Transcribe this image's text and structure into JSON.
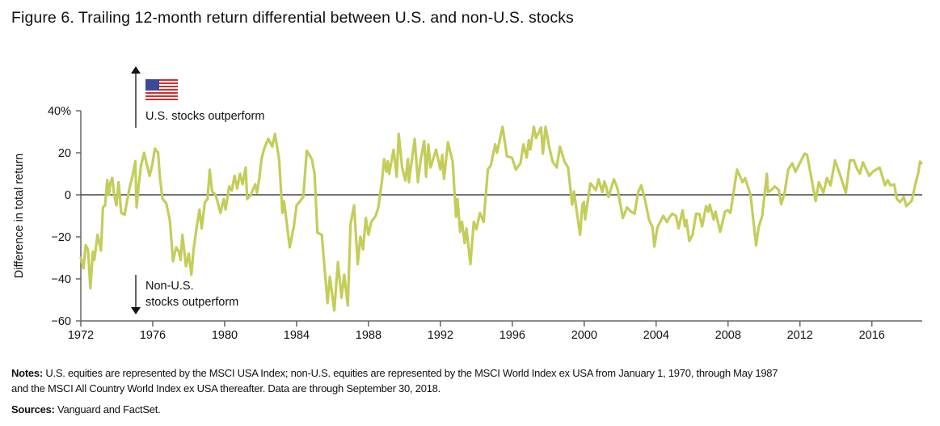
{
  "title": "Figure 6. Trailing 12-month return differential between U.S. and non-U.S. stocks",
  "notes": {
    "notes_label": "Notes:",
    "notes_text_line1": "U.S. equities are represented by the MSCI USA Index; non-U.S. equities are represented by the MSCI World Index ex USA from January 1, 1970, through May 1987",
    "notes_text_line2": "and the MSCI All Country World Index ex USA thereafter. Data are through September 30, 2018.",
    "sources_label": "Sources:",
    "sources_text": "Vanguard and FactSet."
  },
  "chart_data": {
    "type": "line",
    "title": "Figure 6. Trailing 12-month return differential between U.S. and non-U.S. stocks",
    "xlabel": "",
    "ylabel": "Difference in total return",
    "xlim": [
      1972,
      2018.8
    ],
    "ylim": [
      -60,
      40
    ],
    "x_ticks": [
      "1972",
      "1976",
      "1980",
      "1984",
      "1988",
      "1992",
      "1996",
      "2000",
      "2004",
      "2008",
      "2012",
      "2016"
    ],
    "y_ticks": [
      "40%",
      "20",
      "0",
      "−20",
      "−40",
      "−60"
    ],
    "y_tick_values": [
      40,
      20,
      0,
      -20,
      -40,
      -60
    ],
    "x_tick_values": [
      1972,
      1976,
      1980,
      1984,
      1988,
      1992,
      1996,
      2000,
      2004,
      2008,
      2012,
      2016
    ],
    "grid": false,
    "zero_line": true,
    "line_color": "#c4cd5a",
    "annotations": {
      "up": "U.S. stocks outperform",
      "down_line1": "Non-U.S.",
      "down_line2": "stocks outperform",
      "up_icon": "us-flag-icon"
    },
    "series": [
      {
        "points": [
          [
            1972.0,
            -30
          ],
          [
            1972.15,
            -35
          ],
          [
            1972.27,
            -24
          ],
          [
            1972.4,
            -26
          ],
          [
            1972.53,
            -44.5
          ],
          [
            1972.67,
            -27
          ],
          [
            1972.75,
            -31
          ],
          [
            1972.93,
            -19
          ],
          [
            1973.12,
            -26.5
          ],
          [
            1973.23,
            -6
          ],
          [
            1973.35,
            -5
          ],
          [
            1973.47,
            7
          ],
          [
            1973.56,
            0
          ],
          [
            1973.65,
            6
          ],
          [
            1973.75,
            8
          ],
          [
            1973.85,
            0
          ],
          [
            1973.98,
            -5
          ],
          [
            1974.1,
            6
          ],
          [
            1974.25,
            -8.6
          ],
          [
            1974.43,
            -9.5
          ],
          [
            1974.7,
            3
          ],
          [
            1974.85,
            8
          ],
          [
            1975.03,
            16
          ],
          [
            1975.1,
            -6
          ],
          [
            1975.2,
            3
          ],
          [
            1975.35,
            14
          ],
          [
            1975.52,
            20
          ],
          [
            1975.82,
            9
          ],
          [
            1975.97,
            14
          ],
          [
            1976.12,
            22
          ],
          [
            1976.3,
            20
          ],
          [
            1976.4,
            8
          ],
          [
            1976.55,
            -2
          ],
          [
            1976.75,
            -4
          ],
          [
            1976.95,
            -12
          ],
          [
            1977.13,
            -31.6
          ],
          [
            1977.3,
            -25
          ],
          [
            1977.45,
            -27
          ],
          [
            1977.55,
            -31
          ],
          [
            1977.65,
            -19
          ],
          [
            1977.85,
            -34
          ],
          [
            1978.0,
            -28
          ],
          [
            1978.15,
            -38
          ],
          [
            1978.27,
            -26
          ],
          [
            1978.45,
            -15
          ],
          [
            1978.6,
            -7
          ],
          [
            1978.72,
            -16
          ],
          [
            1978.9,
            -3.5
          ],
          [
            1979.05,
            -2
          ],
          [
            1979.17,
            12
          ],
          [
            1979.3,
            1.5
          ],
          [
            1979.5,
            0
          ],
          [
            1979.77,
            -8.6
          ],
          [
            1979.95,
            -2
          ],
          [
            1980.05,
            -7
          ],
          [
            1980.25,
            4
          ],
          [
            1980.4,
            2
          ],
          [
            1980.55,
            9
          ],
          [
            1980.7,
            3
          ],
          [
            1980.85,
            10
          ],
          [
            1981.0,
            5
          ],
          [
            1981.17,
            13
          ],
          [
            1981.25,
            -2
          ],
          [
            1981.45,
            0
          ],
          [
            1981.7,
            5
          ],
          [
            1981.8,
            1
          ],
          [
            1981.93,
            8
          ],
          [
            1982.05,
            17
          ],
          [
            1982.2,
            22
          ],
          [
            1982.42,
            26.6
          ],
          [
            1982.65,
            23
          ],
          [
            1982.8,
            29
          ],
          [
            1983.03,
            17
          ],
          [
            1983.21,
            -8.6
          ],
          [
            1983.3,
            -3
          ],
          [
            1983.62,
            -25
          ],
          [
            1983.85,
            -15
          ],
          [
            1984.0,
            -5
          ],
          [
            1984.2,
            -3
          ],
          [
            1984.37,
            -1
          ],
          [
            1984.57,
            21
          ],
          [
            1984.85,
            17
          ],
          [
            1985.0,
            10
          ],
          [
            1985.16,
            -18
          ],
          [
            1985.4,
            -19
          ],
          [
            1985.72,
            -51.5
          ],
          [
            1985.85,
            -39
          ],
          [
            1986.1,
            -55
          ],
          [
            1986.3,
            -32
          ],
          [
            1986.5,
            -49
          ],
          [
            1986.65,
            -38
          ],
          [
            1986.85,
            -52.7
          ],
          [
            1987.0,
            -14
          ],
          [
            1987.2,
            -5
          ],
          [
            1987.4,
            -33
          ],
          [
            1987.55,
            -20
          ],
          [
            1987.7,
            -26
          ],
          [
            1987.85,
            -11
          ],
          [
            1988.0,
            -19
          ],
          [
            1988.15,
            -13
          ],
          [
            1988.4,
            -10
          ],
          [
            1988.55,
            -6
          ],
          [
            1988.76,
            7.4
          ],
          [
            1988.87,
            17
          ],
          [
            1989.0,
            11
          ],
          [
            1989.08,
            16
          ],
          [
            1989.15,
            10
          ],
          [
            1989.4,
            21.5
          ],
          [
            1989.57,
            8.6
          ],
          [
            1989.68,
            29
          ],
          [
            1989.87,
            13
          ],
          [
            1990.05,
            6.8
          ],
          [
            1990.2,
            17
          ],
          [
            1990.25,
            6
          ],
          [
            1990.57,
            26.6
          ],
          [
            1990.75,
            6
          ],
          [
            1990.9,
            16.5
          ],
          [
            1991.1,
            25.6
          ],
          [
            1991.2,
            8.6
          ],
          [
            1991.33,
            24
          ],
          [
            1991.45,
            13
          ],
          [
            1991.76,
            21.5
          ],
          [
            1992.0,
            12
          ],
          [
            1992.1,
            19
          ],
          [
            1992.2,
            7.6
          ],
          [
            1992.42,
            25
          ],
          [
            1992.57,
            19.6
          ],
          [
            1992.68,
            16
          ],
          [
            1992.87,
            -10.5
          ],
          [
            1992.95,
            -2
          ],
          [
            1993.1,
            -17.6
          ],
          [
            1993.2,
            -12.8
          ],
          [
            1993.35,
            -23
          ],
          [
            1993.45,
            -16
          ],
          [
            1993.67,
            -33
          ],
          [
            1993.86,
            -12.8
          ],
          [
            1994.0,
            -16.4
          ],
          [
            1994.2,
            -8.6
          ],
          [
            1994.4,
            -13
          ],
          [
            1994.64,
            12
          ],
          [
            1994.8,
            14
          ],
          [
            1995.05,
            24
          ],
          [
            1995.15,
            20
          ],
          [
            1995.46,
            32.4
          ],
          [
            1995.7,
            18.3
          ],
          [
            1995.98,
            17.7
          ],
          [
            1996.2,
            12
          ],
          [
            1996.45,
            15
          ],
          [
            1996.62,
            24
          ],
          [
            1996.8,
            17.7
          ],
          [
            1996.92,
            26
          ],
          [
            1997.0,
            21.5
          ],
          [
            1997.2,
            32.4
          ],
          [
            1997.32,
            27
          ],
          [
            1997.6,
            32
          ],
          [
            1997.7,
            19.6
          ],
          [
            1997.85,
            32.4
          ],
          [
            1998.05,
            23
          ],
          [
            1998.24,
            15.8
          ],
          [
            1998.47,
            13
          ],
          [
            1998.65,
            23
          ],
          [
            1998.9,
            15.8
          ],
          [
            1999.1,
            13
          ],
          [
            1999.33,
            -4.7
          ],
          [
            1999.43,
            1.5
          ],
          [
            1999.77,
            -19
          ],
          [
            1999.9,
            -4.7
          ],
          [
            1999.98,
            -3.4
          ],
          [
            2000.05,
            -11.7
          ],
          [
            2000.34,
            5.5
          ],
          [
            2000.65,
            2.3
          ],
          [
            2000.8,
            7.4
          ],
          [
            2001.0,
            1.3
          ],
          [
            2001.12,
            6.4
          ],
          [
            2001.22,
            3.8
          ],
          [
            2001.35,
            -1
          ],
          [
            2001.65,
            7.4
          ],
          [
            2001.85,
            3
          ],
          [
            2002.15,
            -11
          ],
          [
            2002.38,
            -6
          ],
          [
            2002.6,
            -8
          ],
          [
            2002.8,
            -9
          ],
          [
            2003.0,
            1.3
          ],
          [
            2003.17,
            4.5
          ],
          [
            2003.37,
            -2
          ],
          [
            2003.6,
            -11.7
          ],
          [
            2003.8,
            -15.5
          ],
          [
            2003.9,
            -24.6
          ],
          [
            2004.07,
            -15.5
          ],
          [
            2004.4,
            -10
          ],
          [
            2004.6,
            -13
          ],
          [
            2004.75,
            -10.5
          ],
          [
            2004.9,
            -9
          ],
          [
            2005.1,
            -10
          ],
          [
            2005.25,
            -16
          ],
          [
            2005.47,
            -7.3
          ],
          [
            2005.6,
            -15
          ],
          [
            2005.68,
            -12
          ],
          [
            2005.85,
            -22
          ],
          [
            2006.03,
            -19
          ],
          [
            2006.22,
            -9
          ],
          [
            2006.41,
            -9.2
          ],
          [
            2006.56,
            -15
          ],
          [
            2006.78,
            -5.4
          ],
          [
            2006.9,
            -8
          ],
          [
            2006.98,
            -4.7
          ],
          [
            2007.2,
            -11.7
          ],
          [
            2007.3,
            -8
          ],
          [
            2007.56,
            -17.6
          ],
          [
            2007.83,
            -8
          ],
          [
            2007.98,
            -7.3
          ],
          [
            2008.13,
            -8.6
          ],
          [
            2008.5,
            12
          ],
          [
            2008.8,
            6
          ],
          [
            2008.95,
            8
          ],
          [
            2009.1,
            4
          ],
          [
            2009.25,
            0
          ],
          [
            2009.56,
            -24
          ],
          [
            2009.7,
            -15.5
          ],
          [
            2009.9,
            -10
          ],
          [
            2010.16,
            10
          ],
          [
            2010.22,
            1.3
          ],
          [
            2010.4,
            2.3
          ],
          [
            2010.6,
            4
          ],
          [
            2010.82,
            2.3
          ],
          [
            2010.96,
            -4.5
          ],
          [
            2011.15,
            1
          ],
          [
            2011.34,
            12
          ],
          [
            2011.57,
            15
          ],
          [
            2011.75,
            11
          ],
          [
            2012.26,
            19.6
          ],
          [
            2012.4,
            19
          ],
          [
            2012.87,
            -3
          ],
          [
            2013.05,
            6
          ],
          [
            2013.3,
            1
          ],
          [
            2013.5,
            8
          ],
          [
            2013.7,
            4.5
          ],
          [
            2013.95,
            16.4
          ],
          [
            2014.25,
            9
          ],
          [
            2014.55,
            1
          ],
          [
            2014.78,
            16.4
          ],
          [
            2015.0,
            16.4
          ],
          [
            2015.14,
            13
          ],
          [
            2015.33,
            10
          ],
          [
            2015.5,
            15.5
          ],
          [
            2015.85,
            9
          ],
          [
            2016.05,
            11
          ],
          [
            2016.43,
            13
          ],
          [
            2016.73,
            4.5
          ],
          [
            2016.88,
            7
          ],
          [
            2017.03,
            4.5
          ],
          [
            2017.24,
            5
          ],
          [
            2017.39,
            -2
          ],
          [
            2017.57,
            -3.5
          ],
          [
            2017.77,
            -1
          ],
          [
            2017.92,
            -5.4
          ],
          [
            2018.22,
            -2.8
          ],
          [
            2018.42,
            5
          ],
          [
            2018.57,
            10
          ],
          [
            2018.68,
            15.8
          ],
          [
            2018.75,
            15
          ]
        ]
      }
    ]
  }
}
